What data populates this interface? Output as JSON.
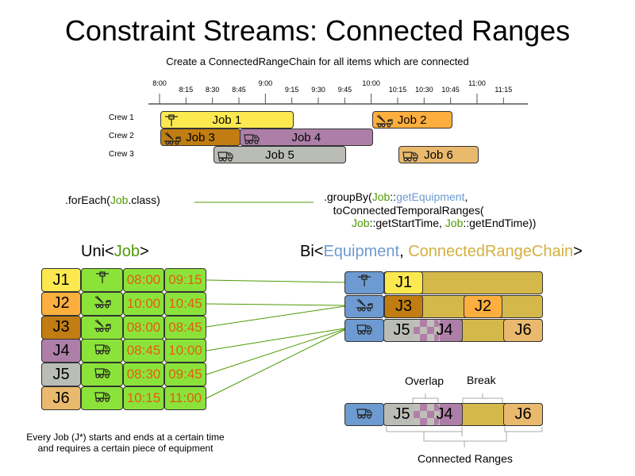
{
  "title": "Constraint Streams: Connected Ranges",
  "subtitle": "Create a ConnectedRangeChain for all items which are connected",
  "timeline": {
    "hour_ticks": [
      "8:00",
      "9:00",
      "10:00",
      "11:00"
    ],
    "quarter_ticks": [
      "8:15",
      "8:30",
      "8:45",
      "9:15",
      "9:30",
      "9:45",
      "10:15",
      "10:30",
      "10:45",
      "11:15"
    ]
  },
  "crews": [
    "Crew 1",
    "Crew 2",
    "Crew 3"
  ],
  "jobs": [
    {
      "label": "Job 1",
      "short": "J1",
      "crew": 1,
      "start": "08:00",
      "end": "09:15",
      "equipment": "jackhammer",
      "color": "#fce94f"
    },
    {
      "label": "Job 2",
      "short": "J2",
      "crew": 1,
      "start": "10:00",
      "end": "10:45",
      "equipment": "crane-truck",
      "color": "#fcaf3e"
    },
    {
      "label": "Job 3",
      "short": "J3",
      "crew": 2,
      "start": "08:00",
      "end": "08:45",
      "equipment": "crane-truck",
      "color": "#c17d11"
    },
    {
      "label": "Job 4",
      "short": "J4",
      "crew": 2,
      "start": "08:45",
      "end": "10:00",
      "equipment": "dump-truck",
      "color": "#ad7fa8"
    },
    {
      "label": "Job 5",
      "short": "J5",
      "crew": 3,
      "start": "08:30",
      "end": "09:45",
      "equipment": "dump-truck",
      "color": "#babdb6"
    },
    {
      "label": "Job 6",
      "short": "J6",
      "crew": 3,
      "start": "10:15",
      "end": "11:00",
      "equipment": "dump-truck",
      "color": "#e9b96e"
    }
  ],
  "code": {
    "forEach_pre": ".forEach(",
    "forEach_job": "Job",
    "forEach_post": ".class)",
    "l1a": ".groupBy(",
    "l1b": "Job",
    "l1c": "::",
    "l1d": "getEquipment",
    "l1e": ",",
    "l2": "toConnectedTemporalRanges(",
    "l3a": "Job",
    "l3b": "::getStartTime, ",
    "l3c": "Job",
    "l3d": "::getEndTime))"
  },
  "uni": {
    "pre": "Uni<",
    "job": "Job",
    "post": ">"
  },
  "bi": {
    "pre": "Bi<",
    "equipment": "Equipment",
    "sep": ", ",
    "chain": "ConnectedRangeChain",
    "post": ">"
  },
  "labels": {
    "overlap": "Overlap",
    "break": "Break",
    "connected": "Connected Ranges"
  },
  "footer": [
    "Every Job (J*) starts and ends at a certain time",
    "and requires a certain piece of equipment"
  ],
  "colors": {
    "time_cell": "#8be33a",
    "time_text": "#e35d0e",
    "equipment": "#6d9ad0",
    "chain": "#d4b94a",
    "link": "#4e9a06"
  }
}
